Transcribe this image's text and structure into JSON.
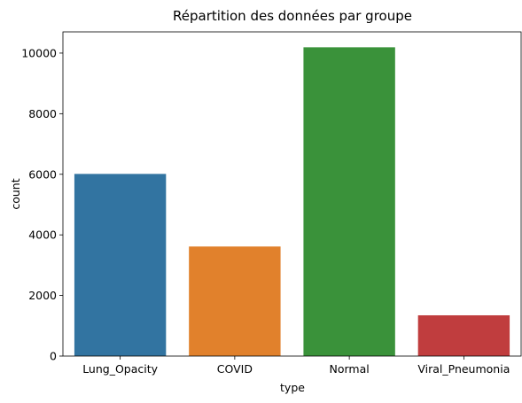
{
  "chart_data": {
    "type": "bar",
    "title": "Répartition des données par groupe",
    "xlabel": "type",
    "ylabel": "count",
    "categories": [
      "Lung_Opacity",
      "COVID",
      "Normal",
      "Viral_Pneumonia"
    ],
    "values": [
      6012,
      3616,
      10192,
      1345
    ],
    "colors": [
      "#3274a1",
      "#e1812c",
      "#3a923a",
      "#c03d3e"
    ],
    "ylim": [
      0,
      10700
    ],
    "yticks": [
      0,
      2000,
      4000,
      6000,
      8000,
      10000
    ],
    "grid": false,
    "legend": "none"
  }
}
